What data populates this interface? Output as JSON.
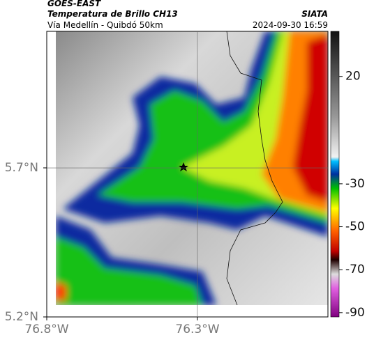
{
  "header": {
    "source": "GOES-EAST",
    "title": "Temperatura de Brillo CH13",
    "org": "SIATA",
    "subtitle": "Vía Medellín - Quibdó 50km",
    "datetime": "2024-09-30 16:59"
  },
  "map": {
    "xlim": [
      -76.8,
      -75.867
    ],
    "ylim": [
      5.2,
      6.158
    ],
    "xticks": [
      {
        "value": -76.8,
        "label": "76.8°W"
      },
      {
        "value": -76.3,
        "label": "76.3°W"
      }
    ],
    "yticks": [
      {
        "value": 5.7,
        "label": "5.7°N"
      },
      {
        "value": 5.2,
        "label": "5.2°N"
      }
    ],
    "grid": [
      {
        "lon": -76.3
      },
      {
        "lat": 5.7
      }
    ]
  },
  "colorbar": {
    "lim": [
      -92,
      41
    ],
    "ticks": [
      20,
      -30,
      -50,
      -70,
      -90
    ]
  }
}
